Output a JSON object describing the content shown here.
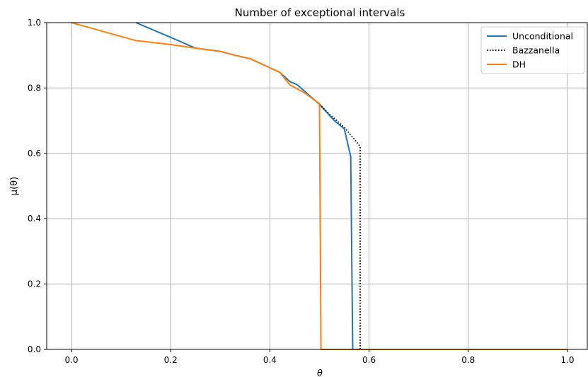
{
  "chart_data": {
    "type": "line",
    "title": "Number of exceptional intervals",
    "xlabel": "θ",
    "ylabel": "μ(θ)",
    "xlim": [
      -0.05,
      1.04
    ],
    "ylim": [
      0.0,
      1.0
    ],
    "xticks": [
      0.0,
      0.2,
      0.4,
      0.6,
      0.8,
      1.0
    ],
    "xtick_labels": [
      "0.0",
      "0.2",
      "0.4",
      "0.6",
      "0.8",
      "1.0"
    ],
    "yticks": [
      0.0,
      0.2,
      0.4,
      0.6,
      0.8,
      1.0
    ],
    "ytick_labels": [
      "0.0",
      "0.2",
      "0.4",
      "0.6",
      "0.8",
      "1.0"
    ],
    "grid": true,
    "legend_position": "top-right",
    "series": [
      {
        "name": "Unconditional",
        "color": "#1f77b4",
        "style": "solid",
        "x": [
          0.13,
          0.2,
          0.25,
          0.3,
          0.33,
          0.35,
          0.36,
          0.4,
          0.42,
          0.44,
          0.455,
          0.47,
          0.5,
          0.53,
          0.55,
          0.563,
          0.567,
          0.567,
          1.0
        ],
        "y": [
          1.0,
          0.955,
          0.922,
          0.912,
          0.9,
          0.893,
          0.89,
          0.862,
          0.848,
          0.82,
          0.81,
          0.79,
          0.75,
          0.7,
          0.675,
          0.59,
          0.0,
          0.0,
          0.0
        ]
      },
      {
        "name": "Bazzanella",
        "color": "#000000",
        "style": "dotted",
        "x": [
          0.5,
          0.52,
          0.55,
          0.58,
          0.582,
          0.582
        ],
        "y": [
          0.75,
          0.72,
          0.68,
          0.625,
          0.62,
          0.0
        ]
      },
      {
        "name": "DH",
        "color": "#ff7f0e",
        "style": "solid",
        "x": [
          0.0,
          0.13,
          0.2,
          0.25,
          0.3,
          0.33,
          0.35,
          0.36,
          0.4,
          0.42,
          0.44,
          0.47,
          0.5,
          0.5,
          0.503,
          1.0
        ],
        "y": [
          1.0,
          0.945,
          0.933,
          0.922,
          0.912,
          0.9,
          0.893,
          0.89,
          0.862,
          0.848,
          0.81,
          0.785,
          0.752,
          0.752,
          0.0,
          0.0
        ]
      }
    ]
  }
}
